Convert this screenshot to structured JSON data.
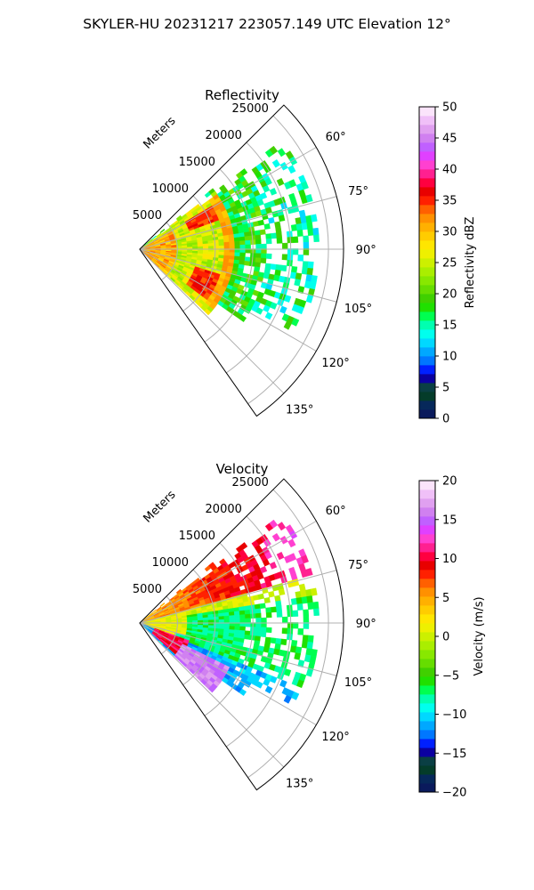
{
  "figure": {
    "suptitle": "SKYLER-HU  20231217  223057.149 UTC Elevation 12°"
  },
  "chart_data": [
    {
      "type": "heatmap",
      "projection": "polar sector (PPI)",
      "title": "Reflectivity",
      "range_label": "Meters",
      "range_ticks": [
        5000,
        10000,
        15000,
        20000,
        25000
      ],
      "rmax": 27000,
      "azimuth_range_deg": [
        45,
        145
      ],
      "azimuth_ticks": [
        "60°",
        "75°",
        "90°",
        "105°",
        "120°",
        "135°"
      ],
      "azimuth_tick_values": [
        60,
        75,
        90,
        105,
        120,
        135
      ],
      "grid": true,
      "colorbar": {
        "label": "Reflectivity dBZ",
        "min": 0,
        "max": 50,
        "ticks": [
          0,
          5,
          10,
          15,
          20,
          25,
          30,
          35,
          40,
          45,
          50
        ],
        "tick_labels": [
          "0",
          "5",
          "10",
          "15",
          "20",
          "25",
          "30",
          "35",
          "40",
          "45",
          "50"
        ],
        "colors": [
          "#0a1a5c",
          "#06285a",
          "#043c2a",
          "#0a3f44",
          "#0b00a0",
          "#0020ff",
          "#0077ff",
          "#00a8ff",
          "#00d8ff",
          "#00ffee",
          "#00ffb0",
          "#00ff50",
          "#20e000",
          "#40d000",
          "#66dd00",
          "#88e800",
          "#aaee00",
          "#ccf000",
          "#eef000",
          "#ffe600",
          "#ffcc00",
          "#ffb000",
          "#ff9000",
          "#ff6000",
          "#ff2000",
          "#e80000",
          "#ff0040",
          "#ff2090",
          "#ff40d0",
          "#e040ff",
          "#c060ff",
          "#d080f0",
          "#e0a0f0",
          "#f0c0f8",
          "#fbe4fb"
        ]
      },
      "field_summary": [
        {
          "feature": "near-radar core",
          "range_m": [
            0,
            5000
          ],
          "az_deg": [
            60,
            135
          ],
          "dbz": [
            28,
            38
          ]
        },
        {
          "feature": "northern cell",
          "range_m": [
            7000,
            11000
          ],
          "az_deg": [
            58,
            70
          ],
          "dbz": [
            32,
            38
          ]
        },
        {
          "feature": "southern cell",
          "range_m": [
            8000,
            12000
          ],
          "az_deg": [
            108,
            128
          ],
          "dbz": [
            32,
            38
          ]
        },
        {
          "feature": "bright ring",
          "range_m": [
            11000,
            12500
          ],
          "az_deg": [
            55,
            130
          ],
          "dbz": [
            28,
            34
          ]
        },
        {
          "feature": "outer echo",
          "range_m": [
            13000,
            23000
          ],
          "az_deg": [
            50,
            120
          ],
          "dbz": [
            12,
            22
          ]
        }
      ]
    },
    {
      "type": "heatmap",
      "projection": "polar sector (PPI)",
      "title": "Velocity",
      "range_label": "Meters",
      "range_ticks": [
        5000,
        10000,
        15000,
        20000,
        25000
      ],
      "rmax": 27000,
      "azimuth_range_deg": [
        45,
        145
      ],
      "azimuth_ticks": [
        "60°",
        "75°",
        "90°",
        "105°",
        "120°",
        "135°"
      ],
      "azimuth_tick_values": [
        60,
        75,
        90,
        105,
        120,
        135
      ],
      "grid": true,
      "colorbar": {
        "label": "Velocity (m/s)",
        "min": -20,
        "max": 20,
        "ticks": [
          -20,
          -15,
          -10,
          -5,
          0,
          5,
          10,
          15,
          20
        ],
        "tick_labels": [
          "−20",
          "−15",
          "−10",
          "−5",
          "0",
          "5",
          "10",
          "15",
          "20"
        ],
        "colors": [
          "#0a1a5c",
          "#06285a",
          "#043c2a",
          "#0a3f44",
          "#0b00a0",
          "#0020ff",
          "#0077ff",
          "#00a8ff",
          "#00d8ff",
          "#00ffee",
          "#00ffb0",
          "#00ff50",
          "#20e000",
          "#40d000",
          "#66dd00",
          "#88e800",
          "#aaee00",
          "#ccf000",
          "#eef000",
          "#ffe600",
          "#ffcc00",
          "#ffb000",
          "#ff9000",
          "#ff6000",
          "#ff2000",
          "#e80000",
          "#ff0040",
          "#ff2090",
          "#ff40d0",
          "#e040ff",
          "#c060ff",
          "#d080f0",
          "#e0a0f0",
          "#f0c0f8",
          "#fbe4fb"
        ]
      },
      "field_summary": [
        {
          "feature": "northern outbound",
          "range_m": [
            3000,
            22000
          ],
          "az_deg": [
            50,
            75
          ],
          "ms": [
            5,
            12
          ]
        },
        {
          "feature": "near-radar yellow",
          "range_m": [
            0,
            6000
          ],
          "az_deg": [
            60,
            105
          ],
          "ms": [
            -1,
            3
          ]
        },
        {
          "feature": "central inbound",
          "range_m": [
            5000,
            20000
          ],
          "az_deg": [
            80,
            115
          ],
          "ms": [
            -10,
            -4
          ]
        },
        {
          "feature": "southern red pocket",
          "range_m": [
            2000,
            7000
          ],
          "az_deg": [
            110,
            132
          ],
          "ms": [
            8,
            12
          ]
        },
        {
          "feature": "southern fringe",
          "range_m": [
            6000,
            13000
          ],
          "az_deg": [
            115,
            132
          ],
          "ms": [
            14,
            18
          ]
        },
        {
          "feature": "southern cyan",
          "range_m": [
            8000,
            16000
          ],
          "az_deg": [
            100,
            125
          ],
          "ms": [
            -14,
            -10
          ]
        }
      ]
    }
  ]
}
